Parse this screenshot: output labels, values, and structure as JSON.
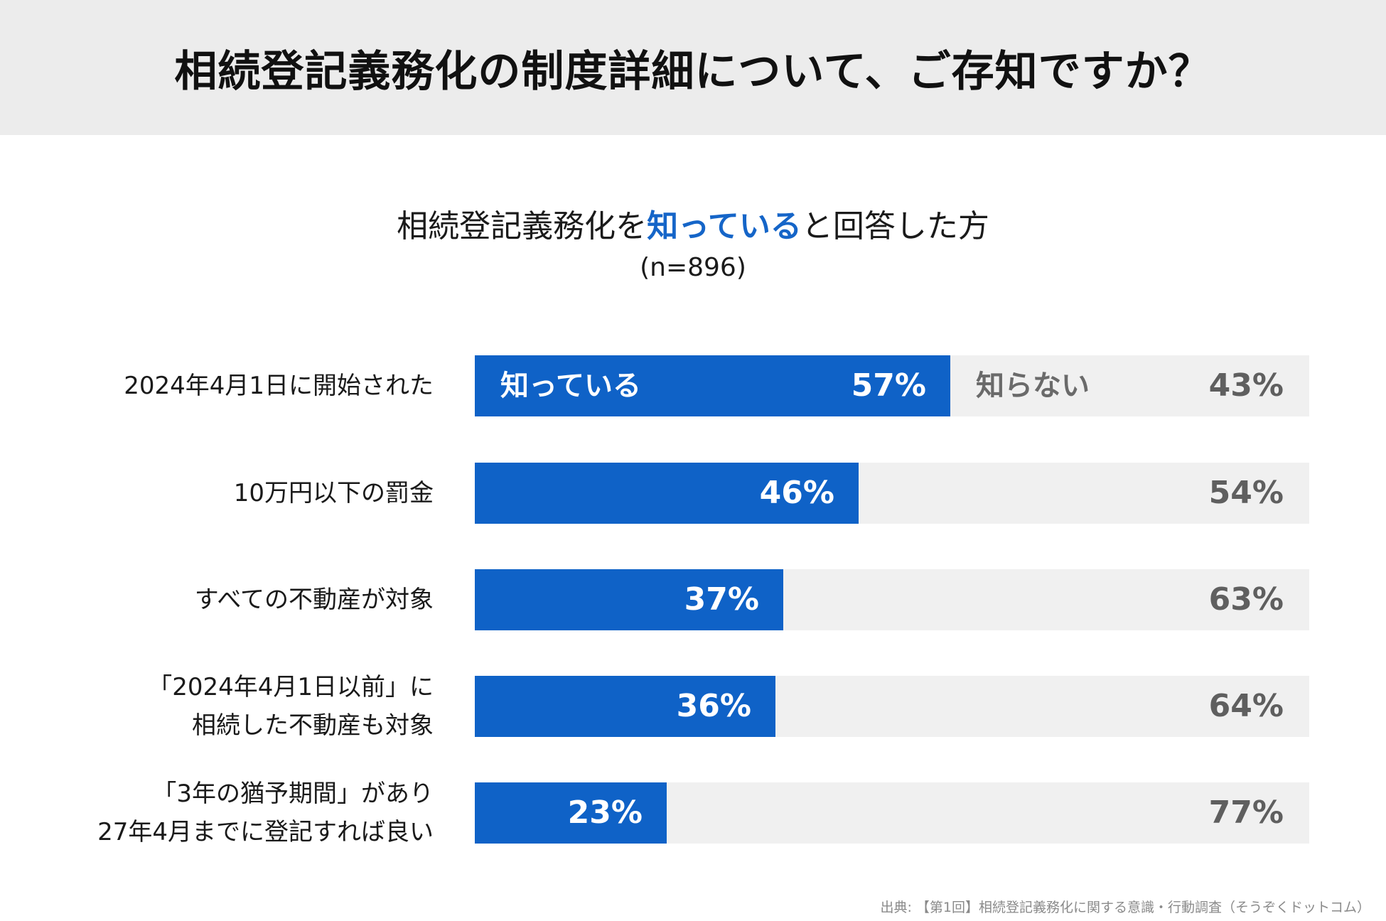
{
  "header": {
    "title": "相続登記義務化の制度詳細について、ご存知ですか？"
  },
  "subtitle": {
    "prefix": "相続登記義務化を",
    "highlight": "知っている",
    "suffix": "と回答した方",
    "sample": "(n=896)"
  },
  "legend": {
    "known": "知っている",
    "unknown": "知らない"
  },
  "colors": {
    "known": "#0f62c7",
    "unknown": "#f0f0f0",
    "header_bg": "#ececec"
  },
  "chart_data": {
    "type": "bar",
    "stacked": true,
    "orientation": "horizontal",
    "title": "相続登記義務化の制度詳細について、ご存知ですか？",
    "subtitle": "相続登記義務化を知っていると回答した方 (n=896)",
    "categories": [
      [
        "2024年4月1日に開始された"
      ],
      [
        "10万円以下の罰金"
      ],
      [
        "すべての不動産が対象"
      ],
      [
        "「2024年4月1日以前」に",
        "相続した不動産も対象"
      ],
      [
        "「3年の猶予期間」があり",
        "27年4月までに登記すれば良い"
      ]
    ],
    "series": [
      {
        "name": "知っている",
        "values": [
          57,
          46,
          37,
          36,
          23
        ]
      },
      {
        "name": "知らない",
        "values": [
          43,
          54,
          63,
          64,
          77
        ]
      }
    ],
    "unit": "%",
    "xlim": [
      0,
      100
    ]
  },
  "source": "出典: 【第1回】相続登記義務化に関する意識・行動調査（そうぞくドットコム）"
}
